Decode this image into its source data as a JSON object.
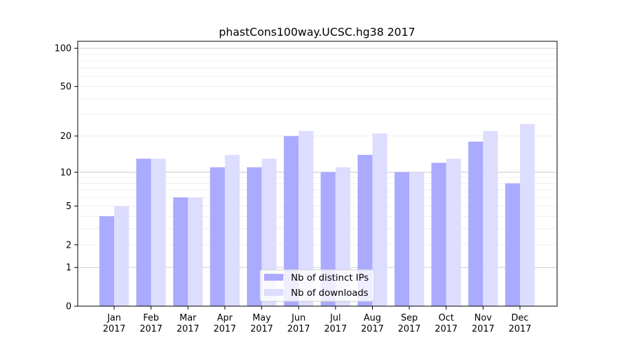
{
  "chart_data": {
    "type": "bar",
    "title": "phastCons100way.UCSC.hg38 2017",
    "xlabel": "",
    "ylabel": "",
    "yscale": "log1p",
    "ylim": [
      0,
      110
    ],
    "yticks": [
      0,
      1,
      2,
      5,
      10,
      20,
      50,
      100
    ],
    "categories": [
      "Jan",
      "Feb",
      "Mar",
      "Apr",
      "May",
      "Jun",
      "Jul",
      "Aug",
      "Sep",
      "Oct",
      "Nov",
      "Dec"
    ],
    "category_year": "2017",
    "legend_position": "bottom-center",
    "series": [
      {
        "name": "Nb of distinct IPs",
        "color": "#aaaaff",
        "values": [
          4,
          13,
          6,
          11,
          11,
          20,
          10,
          14,
          10,
          12,
          18,
          8
        ]
      },
      {
        "name": "Nb of downloads",
        "color": "#ddddff",
        "values": [
          5,
          13,
          6,
          14,
          13,
          22,
          11,
          21,
          10,
          13,
          22,
          25
        ]
      }
    ]
  }
}
